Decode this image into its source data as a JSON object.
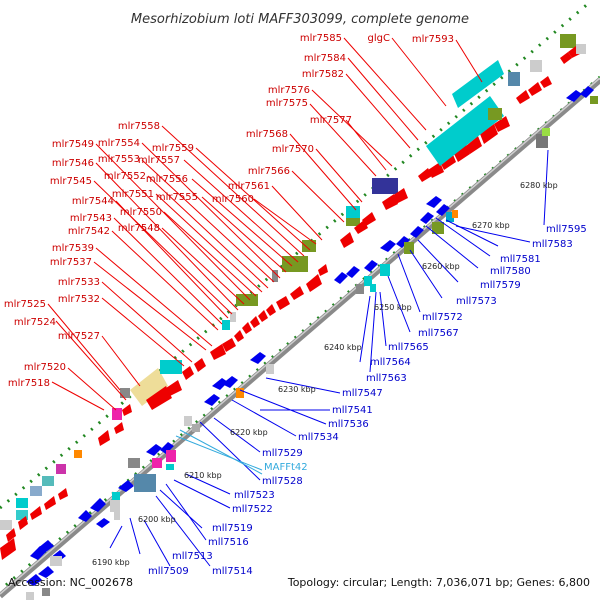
{
  "title": "Mesorhizobium loti MAFF303099, complete genome",
  "footer": {
    "accession": "Accession: NC_002678",
    "summary": "Topology: circular; Length: 7,036,071 bp; Genes: 6,800"
  },
  "scale_labels": [
    "6190 kbp",
    "6200 kbp",
    "6210 kbp",
    "6220 kbp",
    "6230 kbp",
    "6240 kbp",
    "6250 kbp",
    "6260 kbp",
    "6270 kbp",
    "6280 kbp"
  ],
  "forward_genes": [
    "mlr7518",
    "mlr7520",
    "mlr7524",
    "mlr7525",
    "mlr7527",
    "mlr7532",
    "mlr7533",
    "mlr7537",
    "mlr7539",
    "mlr7542",
    "mlr7543",
    "mlr7544",
    "mlr7545",
    "mlr7546",
    "mlr7548",
    "mlr7549",
    "mlr7550",
    "mlr7551",
    "mlr7552",
    "mlr7553",
    "mlr7554",
    "mlr7555",
    "mlr7556",
    "mlr7557",
    "mlr7558",
    "mlr7559",
    "mlr7560",
    "mlr7561",
    "mlr7566",
    "mlr7568",
    "mlr7570",
    "mlr7575",
    "mlr7576",
    "mlr7577",
    "mlr7582",
    "mlr7584",
    "mlr7585",
    "glgC",
    "mlr7593"
  ],
  "reverse_genes": [
    "mll7509",
    "mll7513",
    "mll7514",
    "mll7516",
    "mll7519",
    "mll7522",
    "mll7523",
    "mll7528",
    "mll7529",
    "mll7534",
    "mll7536",
    "mll7541",
    "mll7547",
    "mll7563",
    "mll7564",
    "mll7565",
    "mll7567",
    "mll7572",
    "mll7573",
    "mll7579",
    "mll7580",
    "mll7581",
    "mll7583",
    "mll7595"
  ],
  "rna_genes": [
    "MAFFt42"
  ],
  "colors": {
    "forward": "#cc0000",
    "reverse": "#0000cc",
    "rna": "#33aadd",
    "backbone": "#999999",
    "scale": "#228822"
  }
}
